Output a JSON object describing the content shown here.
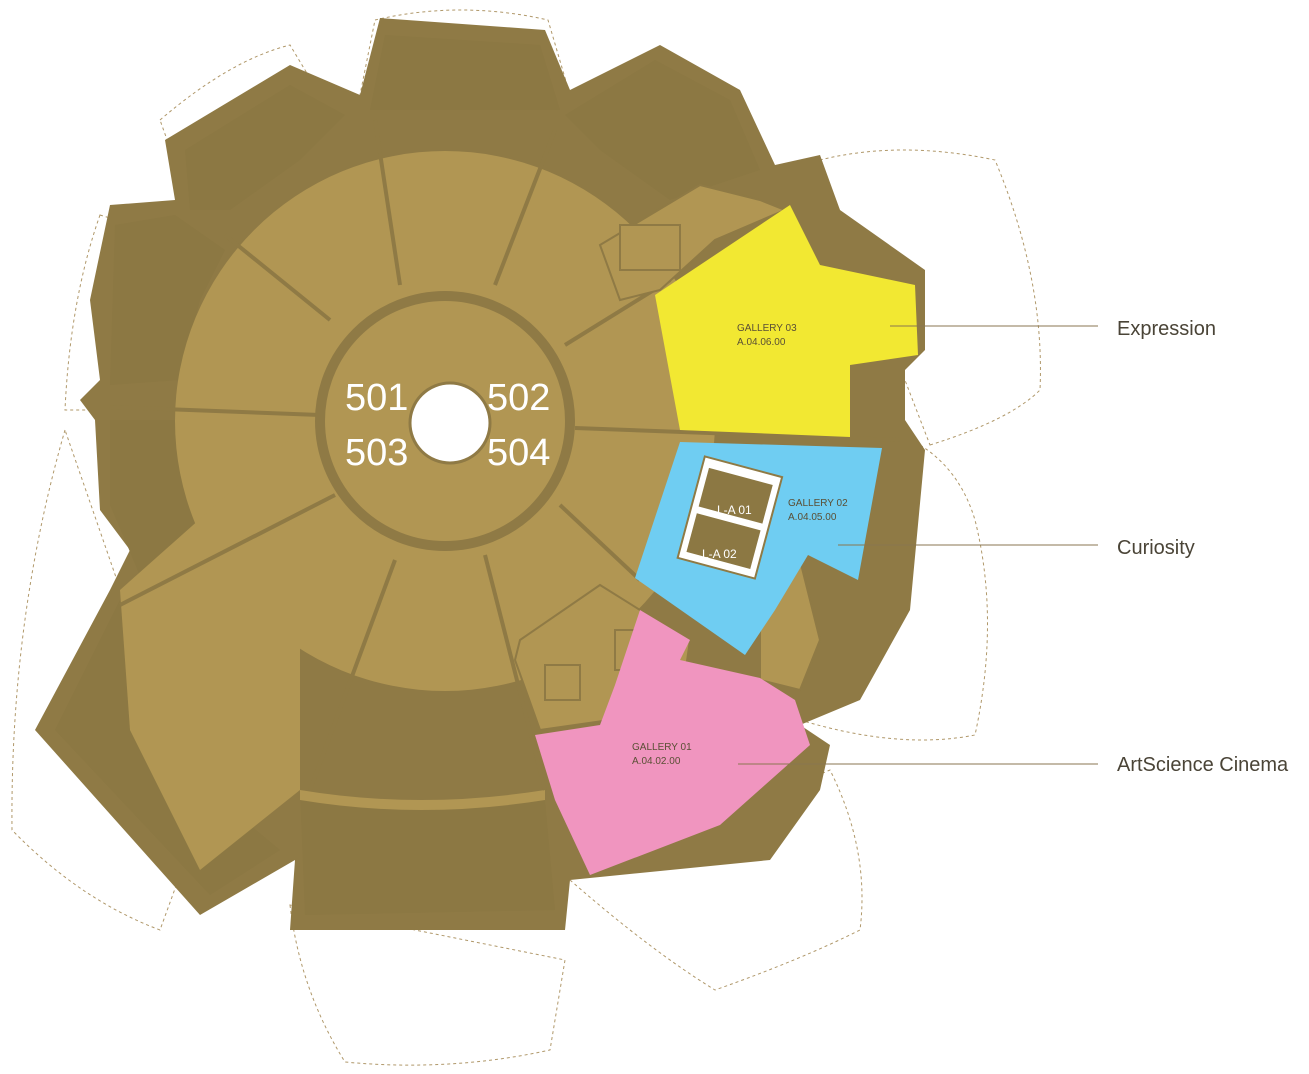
{
  "colors": {
    "outer_wall": "#8f7a45",
    "floor": "#b19653",
    "floor_dark": "#8c7843",
    "petal_outline": "#b0986a",
    "gallery_03": "#f2e832",
    "gallery_02": "#6fcdf2",
    "gallery_01": "#f095bf",
    "leader_line": "#8a7650",
    "label_text": "#4a4437"
  },
  "room_numbers": [
    "501",
    "502",
    "503",
    "504"
  ],
  "lifts": [
    "L-A 01",
    "L-A 02"
  ],
  "galleries": [
    {
      "name": "GALLERY 03",
      "code": "A.04.06.00",
      "color": "#f2e832",
      "legend": "Expression"
    },
    {
      "name": "GALLERY 02",
      "code": "A.04.05.00",
      "color": "#6fcdf2",
      "legend": "Curiosity"
    },
    {
      "name": "GALLERY 01",
      "code": "A.04.02.00",
      "color": "#f095bf",
      "legend": "ArtScience Cinema"
    }
  ]
}
